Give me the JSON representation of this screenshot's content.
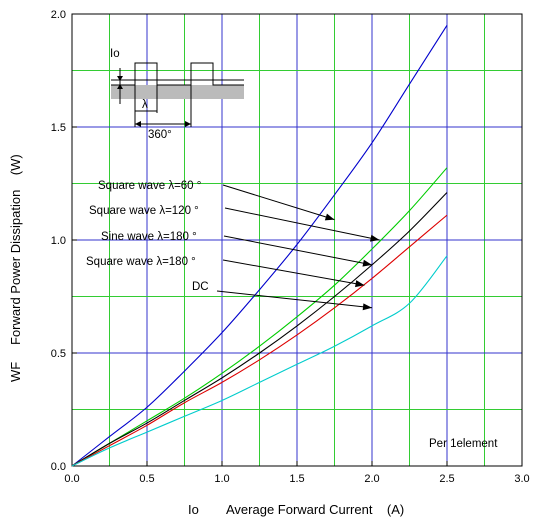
{
  "chart_data": {
    "type": "line",
    "xlabel_symbol": "Io",
    "xlabel": "Average Forward Current    (A)",
    "ylabel_symbol": "WF",
    "ylabel": "Forward Power Dissipation    (W)",
    "xlim": [
      0,
      3.0
    ],
    "ylim": [
      0,
      2.0
    ],
    "x_ticks": [
      "0.0",
      "0.5",
      "1.0",
      "1.5",
      "2.0",
      "2.5",
      "3.0"
    ],
    "y_ticks": [
      "0.0",
      "0.5",
      "1.0",
      "1.5",
      "2.0"
    ],
    "grid": true,
    "note": "Per 1element",
    "inset": {
      "io_label": "Io",
      "lambda_label": "λ",
      "period_label": "360°"
    },
    "series": [
      {
        "name": "Square wave λ=60 °",
        "color": "#0000cc",
        "x": [
          0,
          0.25,
          0.5,
          0.75,
          1.0,
          1.25,
          1.5,
          1.75,
          2.0,
          2.25,
          2.5
        ],
        "y": [
          0,
          0.13,
          0.26,
          0.42,
          0.59,
          0.78,
          0.98,
          1.2,
          1.43,
          1.69,
          1.95
        ]
      },
      {
        "name": "Square wave λ=120 °",
        "color": "#00cc00",
        "x": [
          0,
          0.25,
          0.5,
          0.75,
          1.0,
          1.25,
          1.5,
          1.75,
          2.0,
          2.25,
          2.5
        ],
        "y": [
          0,
          0.1,
          0.2,
          0.3,
          0.41,
          0.53,
          0.66,
          0.8,
          0.96,
          1.13,
          1.32
        ]
      },
      {
        "name": "Sine wave λ=180 °",
        "color": "#000000",
        "x": [
          0,
          0.25,
          0.5,
          0.75,
          1.0,
          1.25,
          1.5,
          1.75,
          2.0,
          2.25,
          2.5
        ],
        "y": [
          0,
          0.1,
          0.19,
          0.29,
          0.39,
          0.5,
          0.62,
          0.75,
          0.89,
          1.04,
          1.21
        ]
      },
      {
        "name": "Square wave λ=180 °",
        "color": "#dd0000",
        "x": [
          0,
          0.25,
          0.5,
          0.75,
          1.0,
          1.25,
          1.5,
          1.75,
          2.0,
          2.25,
          2.5
        ],
        "y": [
          0,
          0.09,
          0.18,
          0.28,
          0.37,
          0.47,
          0.58,
          0.7,
          0.83,
          0.97,
          1.11
        ]
      },
      {
        "name": "DC",
        "color": "#00cccc",
        "x": [
          0,
          0.25,
          0.5,
          0.75,
          1.0,
          1.25,
          1.5,
          1.75,
          2.0,
          2.25,
          2.5
        ],
        "y": [
          0,
          0.08,
          0.15,
          0.22,
          0.29,
          0.37,
          0.45,
          0.53,
          0.62,
          0.72,
          0.93
        ]
      }
    ],
    "annotations": [
      {
        "series": 0,
        "label": "Square wave λ=60 °",
        "arrow_to": [
          1.75,
          1.09
        ]
      },
      {
        "series": 1,
        "label": "Square wave λ=120 °",
        "arrow_to": [
          2.05,
          1.0
        ]
      },
      {
        "series": 2,
        "label": "Sine wave λ=180 °",
        "arrow_to": [
          2.0,
          0.89
        ]
      },
      {
        "series": 3,
        "label": "Square wave λ=180 °",
        "arrow_to": [
          1.95,
          0.8
        ]
      },
      {
        "series": 4,
        "label": "DC",
        "arrow_to": [
          2.0,
          0.7
        ]
      }
    ]
  }
}
